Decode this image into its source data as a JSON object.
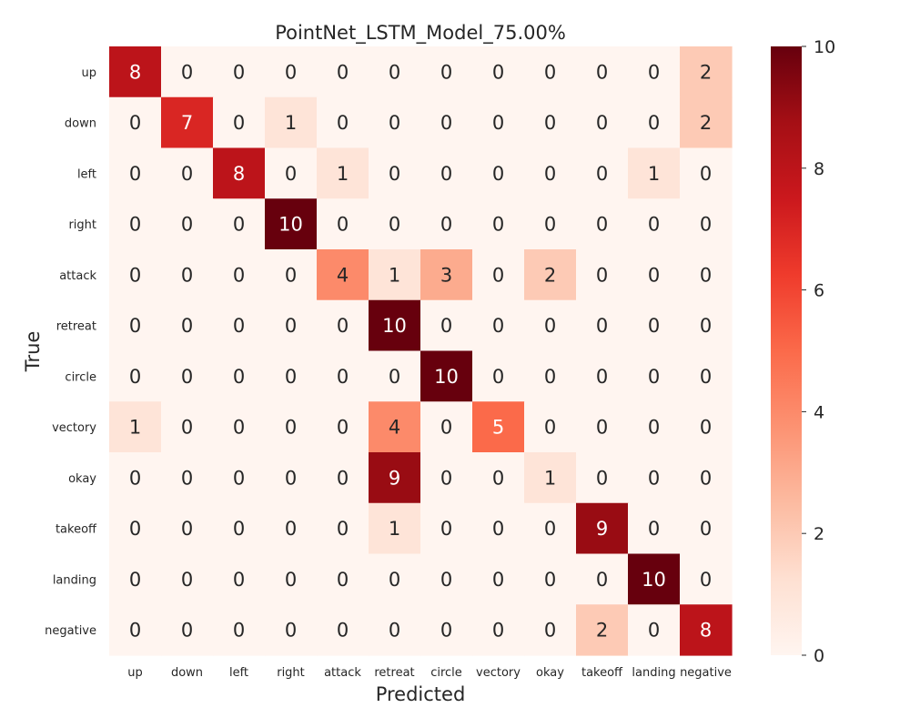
{
  "chart_data": {
    "type": "heatmap",
    "title": "PointNet_LSTM_Model_75.00%",
    "xlabel": "Predicted",
    "ylabel": "True",
    "x_categories": [
      "up",
      "down",
      "left",
      "right",
      "attack",
      "retreat",
      "circle",
      "vectory",
      "okay",
      "takeoff",
      "landing",
      "negative"
    ],
    "y_categories": [
      "up",
      "down",
      "left",
      "right",
      "attack",
      "retreat",
      "circle",
      "vectory",
      "okay",
      "takeoff",
      "landing",
      "negative"
    ],
    "values": [
      [
        8,
        0,
        0,
        0,
        0,
        0,
        0,
        0,
        0,
        0,
        0,
        2
      ],
      [
        0,
        7,
        0,
        1,
        0,
        0,
        0,
        0,
        0,
        0,
        0,
        2
      ],
      [
        0,
        0,
        8,
        0,
        1,
        0,
        0,
        0,
        0,
        0,
        1,
        0
      ],
      [
        0,
        0,
        0,
        10,
        0,
        0,
        0,
        0,
        0,
        0,
        0,
        0
      ],
      [
        0,
        0,
        0,
        0,
        4,
        1,
        3,
        0,
        2,
        0,
        0,
        0
      ],
      [
        0,
        0,
        0,
        0,
        0,
        10,
        0,
        0,
        0,
        0,
        0,
        0
      ],
      [
        0,
        0,
        0,
        0,
        0,
        0,
        10,
        0,
        0,
        0,
        0,
        0
      ],
      [
        1,
        0,
        0,
        0,
        0,
        4,
        0,
        5,
        0,
        0,
        0,
        0
      ],
      [
        0,
        0,
        0,
        0,
        0,
        9,
        0,
        0,
        1,
        0,
        0,
        0
      ],
      [
        0,
        0,
        0,
        0,
        0,
        1,
        0,
        0,
        0,
        9,
        0,
        0
      ],
      [
        0,
        0,
        0,
        0,
        0,
        0,
        0,
        0,
        0,
        0,
        10,
        0
      ],
      [
        0,
        0,
        0,
        0,
        0,
        0,
        0,
        0,
        0,
        2,
        0,
        8
      ]
    ],
    "colormap": "Reds",
    "value_range": [
      0,
      10
    ],
    "colorbar_ticks": [
      0,
      2,
      4,
      6,
      8,
      10
    ]
  }
}
